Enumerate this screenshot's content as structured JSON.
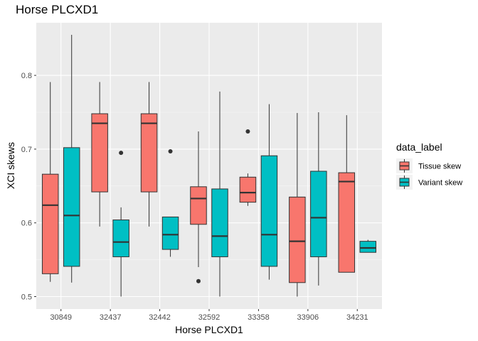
{
  "chart_data": {
    "type": "boxplot",
    "title": "Horse PLCXD1",
    "xlabel": "Horse PLCXD1",
    "ylabel": "XCI skews",
    "ylim": [
      0.488,
      0.87
    ],
    "y_ticks": [
      0.5,
      0.6,
      0.7,
      0.8
    ],
    "y_tick_labels": [
      "0.5",
      "0.6",
      "0.7",
      "0.8"
    ],
    "categories": [
      "30849",
      "32437",
      "32442",
      "32592",
      "33358",
      "33906",
      "34231"
    ],
    "grid": true,
    "legend": {
      "title": "data_label",
      "position": "right"
    },
    "series": [
      {
        "name": "Tissue skew",
        "color": "#F8766D",
        "boxes": [
          {
            "lower_whisker": 0.52,
            "q1": 0.531,
            "median": 0.624,
            "q3": 0.666,
            "upper_whisker": 0.791,
            "outliers": []
          },
          {
            "lower_whisker": 0.595,
            "q1": 0.642,
            "median": 0.735,
            "q3": 0.748,
            "upper_whisker": 0.791,
            "outliers": []
          },
          {
            "lower_whisker": 0.595,
            "q1": 0.642,
            "median": 0.735,
            "q3": 0.748,
            "upper_whisker": 0.791,
            "outliers": []
          },
          {
            "lower_whisker": 0.54,
            "q1": 0.598,
            "median": 0.633,
            "q3": 0.649,
            "upper_whisker": 0.724,
            "outliers": [
              0.521
            ]
          },
          {
            "lower_whisker": 0.623,
            "q1": 0.628,
            "median": 0.641,
            "q3": 0.662,
            "upper_whisker": 0.667,
            "outliers": [
              0.724
            ]
          },
          {
            "lower_whisker": 0.5,
            "q1": 0.519,
            "median": 0.575,
            "q3": 0.635,
            "upper_whisker": 0.749,
            "outliers": []
          },
          {
            "lower_whisker": 0.533,
            "q1": 0.533,
            "median": 0.656,
            "q3": 0.668,
            "upper_whisker": 0.746,
            "outliers": []
          }
        ]
      },
      {
        "name": "Variant skew",
        "color": "#00BFC4",
        "boxes": [
          {
            "lower_whisker": 0.519,
            "q1": 0.541,
            "median": 0.61,
            "q3": 0.702,
            "upper_whisker": 0.855,
            "outliers": []
          },
          {
            "lower_whisker": 0.5,
            "q1": 0.554,
            "median": 0.574,
            "q3": 0.604,
            "upper_whisker": 0.621,
            "outliers": [
              0.695
            ]
          },
          {
            "lower_whisker": 0.554,
            "q1": 0.564,
            "median": 0.584,
            "q3": 0.608,
            "upper_whisker": 0.608,
            "outliers": [
              0.697
            ]
          },
          {
            "lower_whisker": 0.5,
            "q1": 0.554,
            "median": 0.582,
            "q3": 0.646,
            "upper_whisker": 0.778,
            "outliers": []
          },
          {
            "lower_whisker": 0.523,
            "q1": 0.541,
            "median": 0.584,
            "q3": 0.691,
            "upper_whisker": 0.761,
            "outliers": []
          },
          {
            "lower_whisker": 0.515,
            "q1": 0.554,
            "median": 0.607,
            "q3": 0.67,
            "upper_whisker": 0.75,
            "outliers": []
          },
          {
            "lower_whisker": 0.56,
            "q1": 0.56,
            "median": 0.566,
            "q3": 0.575,
            "upper_whisker": 0.577,
            "outliers": []
          }
        ]
      }
    ]
  }
}
